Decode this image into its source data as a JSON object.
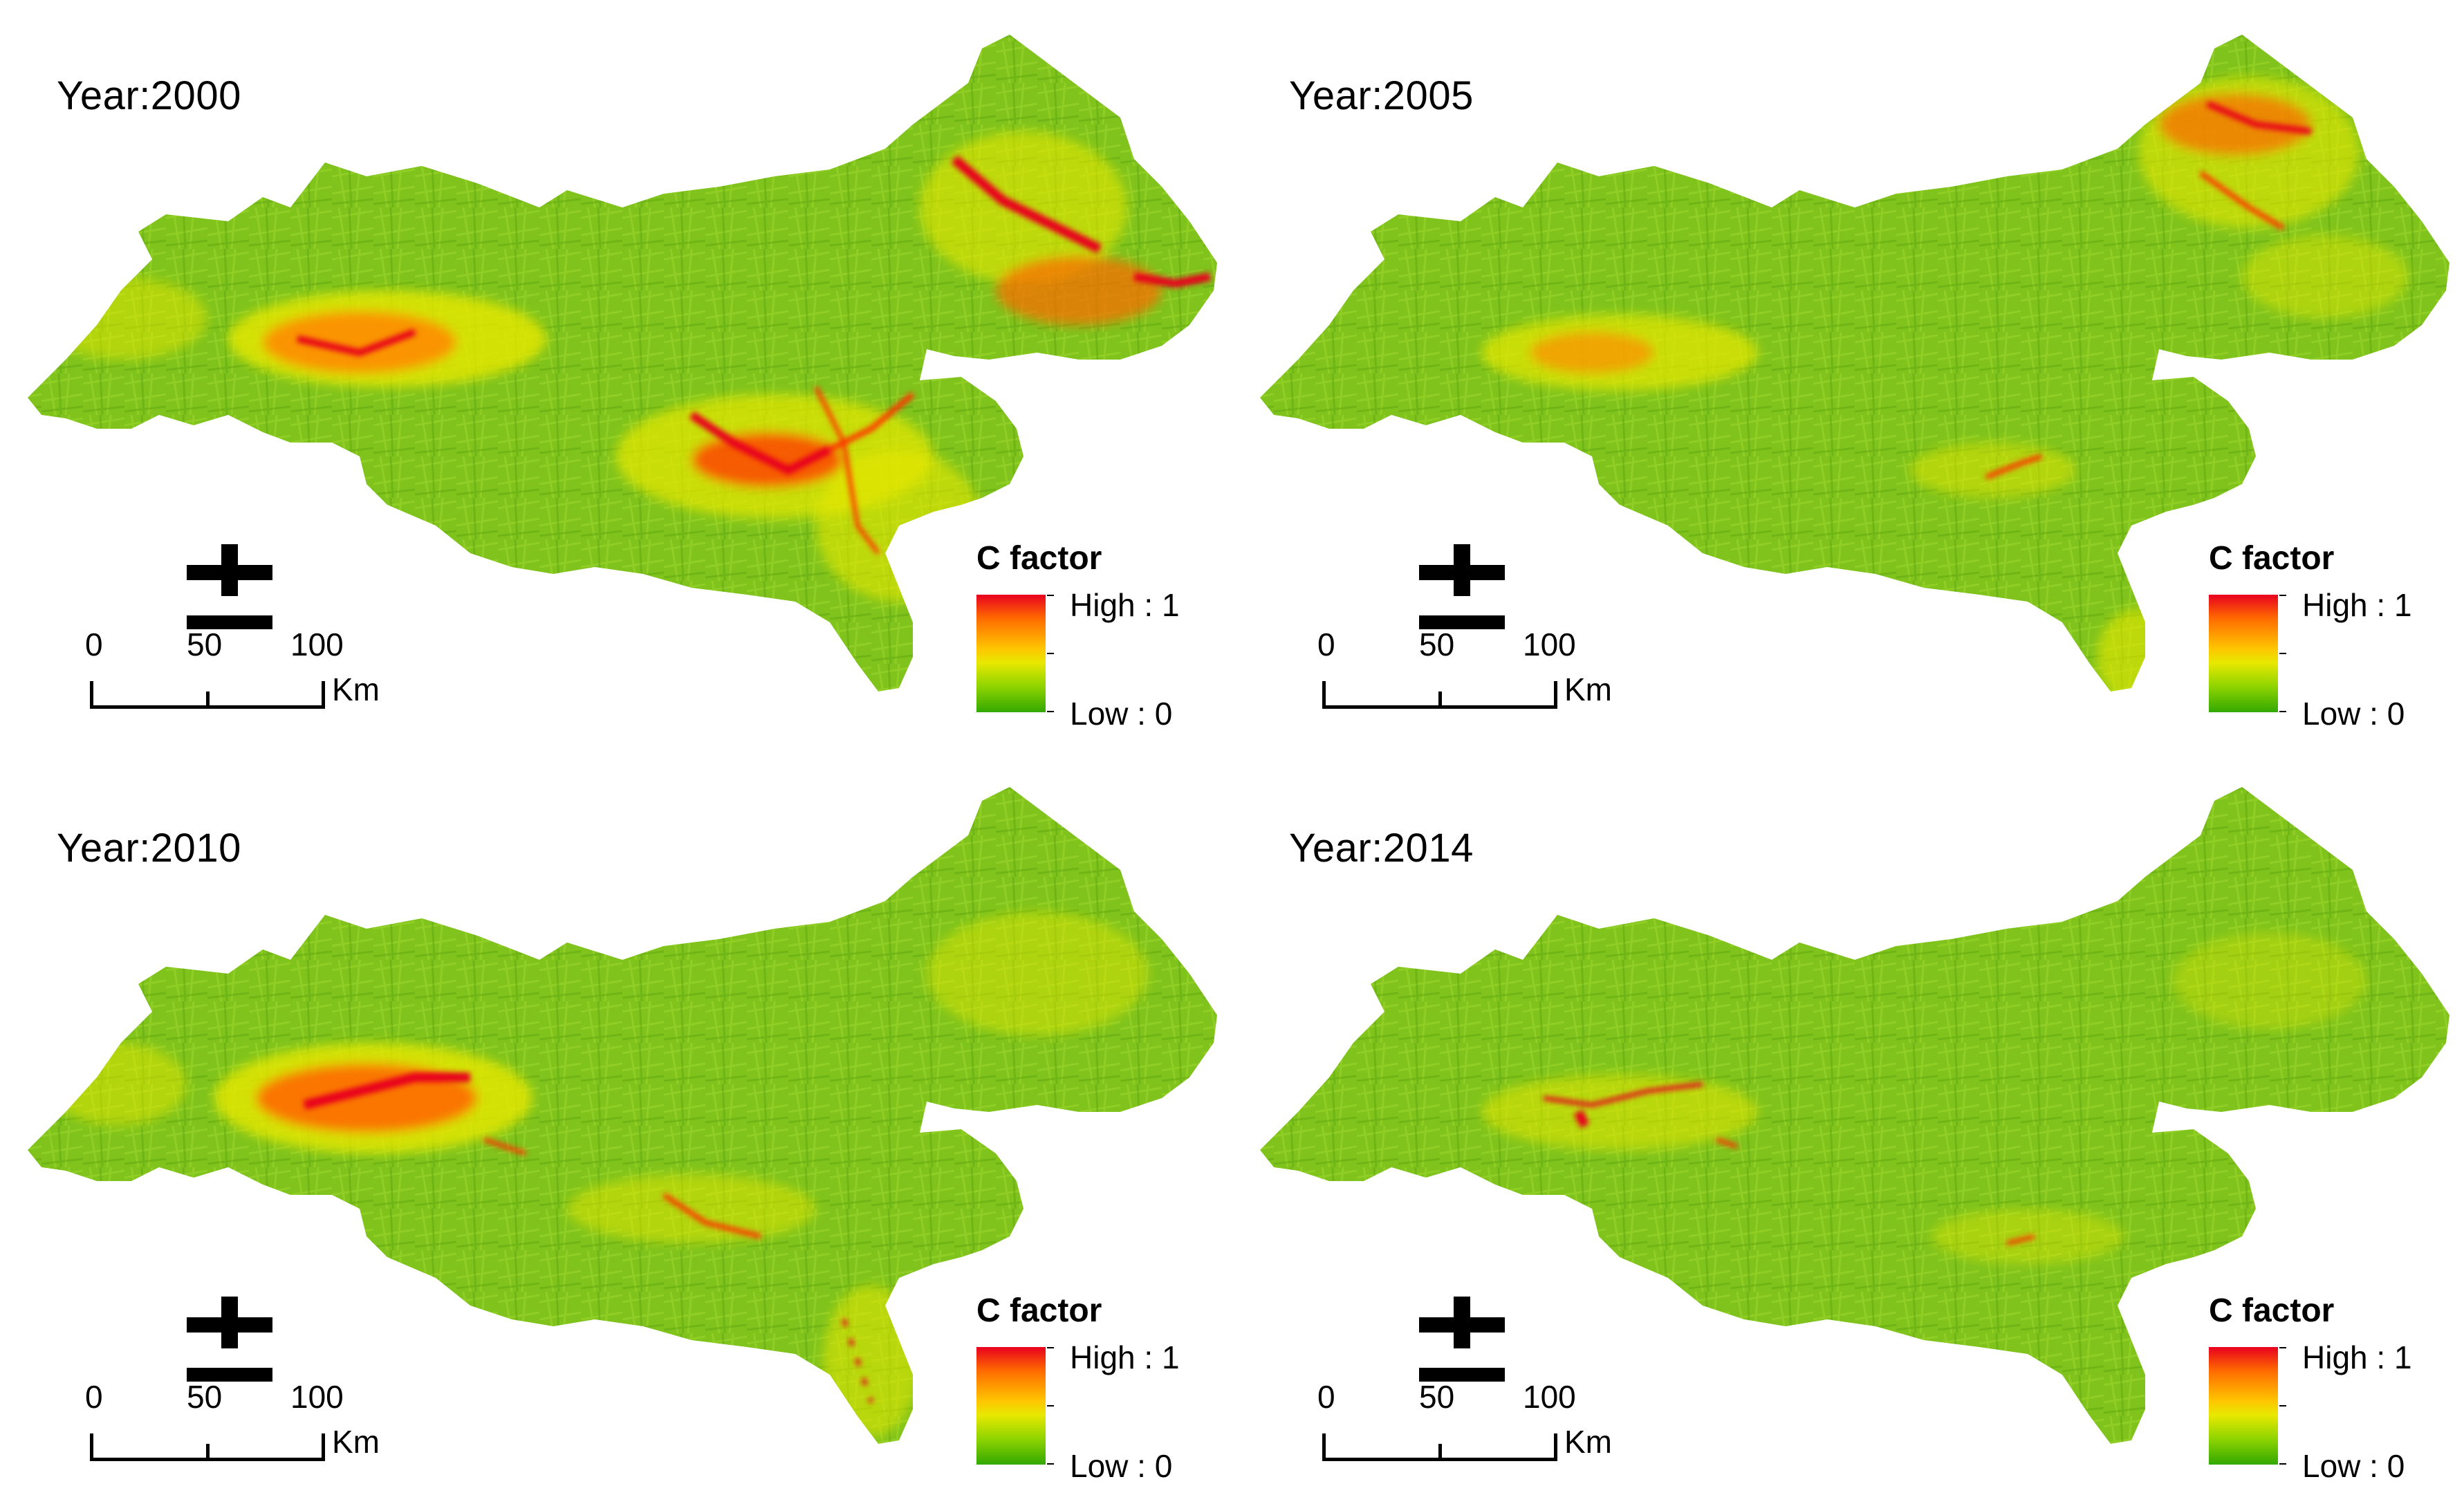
{
  "legend": {
    "title": "C factor",
    "high_label": "High : 1",
    "low_label": "Low : 0",
    "colors": {
      "high": "#e8001f",
      "mid_high": "#ff6a00",
      "mid": "#ffc300",
      "mid_low": "#8fd400",
      "low": "#33a800"
    }
  },
  "scale_bar": {
    "ticks": [
      "0",
      "50",
      "100"
    ],
    "unit": "Km"
  },
  "north_arrow": {
    "icon": "north-arrow-icon"
  },
  "panels": [
    {
      "year_label": "Year:2000",
      "red_hotspots": "high"
    },
    {
      "year_label": "Year:2005",
      "red_hotspots": "low"
    },
    {
      "year_label": "Year:2010",
      "red_hotspots": "medium"
    },
    {
      "year_label": "Year:2014",
      "red_hotspots": "low"
    }
  ]
}
